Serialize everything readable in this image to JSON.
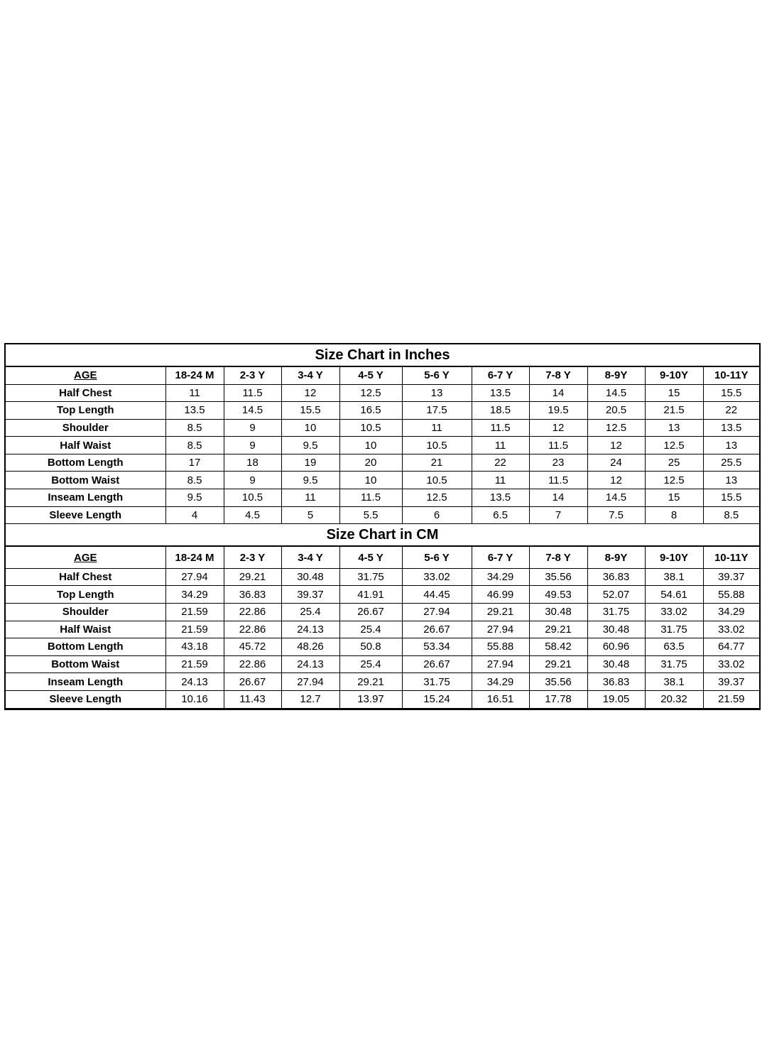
{
  "sizes": [
    "18-24 M",
    "2-3 Y",
    "3-4 Y",
    "4-5 Y",
    "5-6 Y",
    "6-7 Y",
    "7-8 Y",
    "8-9Y",
    "9-10Y",
    "10-11Y"
  ],
  "age_label": "AGE",
  "sections": [
    {
      "title": "Size Chart in Inches",
      "rows": [
        {
          "label": "Half Chest",
          "values": [
            "11",
            "11.5",
            "12",
            "12.5",
            "13",
            "13.5",
            "14",
            "14.5",
            "15",
            "15.5"
          ]
        },
        {
          "label": "Top Length",
          "values": [
            "13.5",
            "14.5",
            "15.5",
            "16.5",
            "17.5",
            "18.5",
            "19.5",
            "20.5",
            "21.5",
            "22"
          ]
        },
        {
          "label": "Shoulder",
          "values": [
            "8.5",
            "9",
            "10",
            "10.5",
            "11",
            "11.5",
            "12",
            "12.5",
            "13",
            "13.5"
          ]
        },
        {
          "label": "Half Waist",
          "values": [
            "8.5",
            "9",
            "9.5",
            "10",
            "10.5",
            "11",
            "11.5",
            "12",
            "12.5",
            "13"
          ]
        },
        {
          "label": "Bottom Length",
          "values": [
            "17",
            "18",
            "19",
            "20",
            "21",
            "22",
            "23",
            "24",
            "25",
            "25.5"
          ]
        },
        {
          "label": "Bottom Waist",
          "values": [
            "8.5",
            "9",
            "9.5",
            "10",
            "10.5",
            "11",
            "11.5",
            "12",
            "12.5",
            "13"
          ]
        },
        {
          "label": "Inseam Length",
          "values": [
            "9.5",
            "10.5",
            "11",
            "11.5",
            "12.5",
            "13.5",
            "14",
            "14.5",
            "15",
            "15.5"
          ]
        },
        {
          "label": "Sleeve Length",
          "values": [
            "4",
            "4.5",
            "5",
            "5.5",
            "6",
            "6.5",
            "7",
            "7.5",
            "8",
            "8.5"
          ]
        }
      ]
    },
    {
      "title": "Size Chart in CM",
      "rows": [
        {
          "label": "Half Chest",
          "values": [
            "27.94",
            "29.21",
            "30.48",
            "31.75",
            "33.02",
            "34.29",
            "35.56",
            "36.83",
            "38.1",
            "39.37"
          ]
        },
        {
          "label": "Top Length",
          "values": [
            "34.29",
            "36.83",
            "39.37",
            "41.91",
            "44.45",
            "46.99",
            "49.53",
            "52.07",
            "54.61",
            "55.88"
          ]
        },
        {
          "label": "Shoulder",
          "values": [
            "21.59",
            "22.86",
            "25.4",
            "26.67",
            "27.94",
            "29.21",
            "30.48",
            "31.75",
            "33.02",
            "34.29"
          ]
        },
        {
          "label": "Half Waist",
          "values": [
            "21.59",
            "22.86",
            "24.13",
            "25.4",
            "26.67",
            "27.94",
            "29.21",
            "30.48",
            "31.75",
            "33.02"
          ]
        },
        {
          "label": "Bottom Length",
          "values": [
            "43.18",
            "45.72",
            "48.26",
            "50.8",
            "53.34",
            "55.88",
            "58.42",
            "60.96",
            "63.5",
            "64.77"
          ]
        },
        {
          "label": "Bottom Waist",
          "values": [
            "21.59",
            "22.86",
            "24.13",
            "25.4",
            "26.67",
            "27.94",
            "29.21",
            "30.48",
            "31.75",
            "33.02"
          ]
        },
        {
          "label": "Inseam Length",
          "values": [
            "24.13",
            "26.67",
            "27.94",
            "29.21",
            "31.75",
            "34.29",
            "35.56",
            "36.83",
            "38.1",
            "39.37"
          ]
        },
        {
          "label": "Sleeve Length",
          "values": [
            "10.16",
            "11.43",
            "12.7",
            "13.97",
            "15.24",
            "16.51",
            "17.78",
            "19.05",
            "20.32",
            "21.59"
          ]
        }
      ]
    }
  ]
}
